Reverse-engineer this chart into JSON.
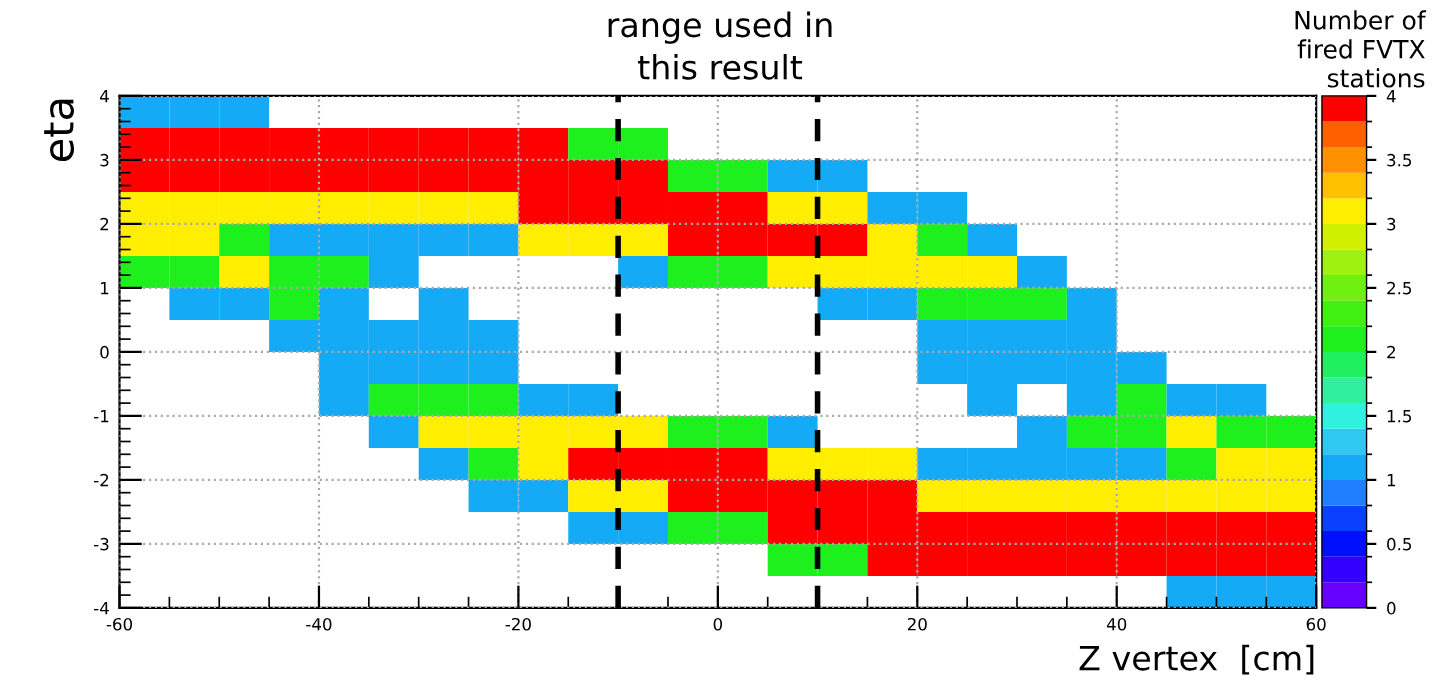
{
  "chart_data": {
    "type": "heatmap",
    "xlabel": "Z vertex  [cm]",
    "ylabel": "eta",
    "clabel": "Number of\nfired FVTX\nstations",
    "annotations": [
      "range used in\nthis result"
    ],
    "xlim": [
      -60,
      60
    ],
    "ylim": [
      -4,
      4
    ],
    "xticks": [
      -60,
      -40,
      -20,
      0,
      20,
      40,
      60
    ],
    "yticks": [
      -4,
      -3,
      -2,
      -1,
      0,
      1,
      2,
      3,
      4
    ],
    "clim": [
      0,
      4
    ],
    "cticks": [
      0,
      0.5,
      1,
      1.5,
      2,
      2.5,
      3,
      3.5,
      4
    ],
    "grid": true,
    "ref_lines": [
      {
        "axis": "x",
        "value": -10,
        "label": null,
        "color": "#000000",
        "line_style": "dashed"
      },
      {
        "axis": "x",
        "value": 10,
        "label": null,
        "color": "#000000",
        "line_style": "dashed"
      }
    ],
    "cells": [
      [
        1,
        1,
        1,
        null,
        null,
        null,
        null,
        null,
        null,
        null,
        null,
        null,
        null,
        null,
        null,
        null,
        null,
        null,
        null,
        null,
        null,
        null,
        null,
        null
      ],
      [
        4,
        4,
        4,
        4,
        4,
        4,
        4,
        4,
        4,
        2,
        2,
        null,
        null,
        null,
        null,
        null,
        null,
        null,
        null,
        null,
        null,
        null,
        null,
        null
      ],
      [
        4,
        4,
        4,
        4,
        4,
        4,
        4,
        4,
        4,
        4,
        4,
        2,
        2,
        1,
        1,
        null,
        null,
        null,
        null,
        null,
        null,
        null,
        null,
        null
      ],
      [
        3,
        3,
        3,
        3,
        3,
        3,
        3,
        3,
        4,
        4,
        4,
        4,
        4,
        3,
        3,
        1,
        1,
        null,
        null,
        null,
        null,
        null,
        null,
        null
      ],
      [
        3,
        3,
        2,
        1,
        1,
        1,
        1,
        1,
        3,
        3,
        3,
        4,
        4,
        4,
        4,
        3,
        2,
        1,
        null,
        null,
        null,
        null,
        null,
        null
      ],
      [
        2,
        2,
        3,
        2,
        2,
        1,
        null,
        null,
        null,
        null,
        1,
        2,
        2,
        3,
        3,
        3,
        3,
        3,
        1,
        null,
        null,
        null,
        null,
        null
      ],
      [
        null,
        1,
        1,
        2,
        1,
        null,
        1,
        null,
        null,
        null,
        null,
        null,
        null,
        null,
        1,
        1,
        2,
        2,
        2,
        1,
        null,
        null,
        null,
        null
      ],
      [
        null,
        null,
        null,
        1,
        1,
        1,
        1,
        1,
        null,
        null,
        null,
        null,
        null,
        null,
        null,
        null,
        1,
        1,
        1,
        1,
        null,
        null,
        null,
        null
      ],
      [
        null,
        null,
        null,
        null,
        1,
        1,
        1,
        1,
        null,
        null,
        null,
        null,
        null,
        null,
        null,
        null,
        1,
        1,
        1,
        1,
        1,
        null,
        null,
        null
      ],
      [
        null,
        null,
        null,
        null,
        1,
        2,
        2,
        2,
        1,
        1,
        null,
        null,
        null,
        null,
        null,
        null,
        null,
        1,
        null,
        1,
        2,
        1,
        1,
        null
      ],
      [
        null,
        null,
        null,
        null,
        null,
        1,
        3,
        3,
        3,
        3,
        3,
        2,
        2,
        1,
        null,
        null,
        null,
        null,
        1,
        2,
        2,
        3,
        2,
        2
      ],
      [
        null,
        null,
        null,
        null,
        null,
        null,
        1,
        2,
        3,
        4,
        4,
        4,
        4,
        3,
        3,
        3,
        1,
        1,
        1,
        1,
        1,
        2,
        3,
        3
      ],
      [
        null,
        null,
        null,
        null,
        null,
        null,
        null,
        1,
        1,
        3,
        3,
        4,
        4,
        4,
        4,
        4,
        3,
        3,
        3,
        3,
        3,
        3,
        3,
        3
      ],
      [
        null,
        null,
        null,
        null,
        null,
        null,
        null,
        null,
        null,
        1,
        1,
        2,
        2,
        4,
        4,
        4,
        4,
        4,
        4,
        4,
        4,
        4,
        4,
        4
      ],
      [
        null,
        null,
        null,
        null,
        null,
        null,
        null,
        null,
        null,
        null,
        null,
        null,
        null,
        2,
        2,
        4,
        4,
        4,
        4,
        4,
        4,
        4,
        4,
        4
      ],
      [
        null,
        null,
        null,
        null,
        null,
        null,
        null,
        null,
        null,
        null,
        null,
        null,
        null,
        null,
        null,
        null,
        null,
        null,
        null,
        null,
        null,
        1,
        1,
        1
      ]
    ]
  }
}
